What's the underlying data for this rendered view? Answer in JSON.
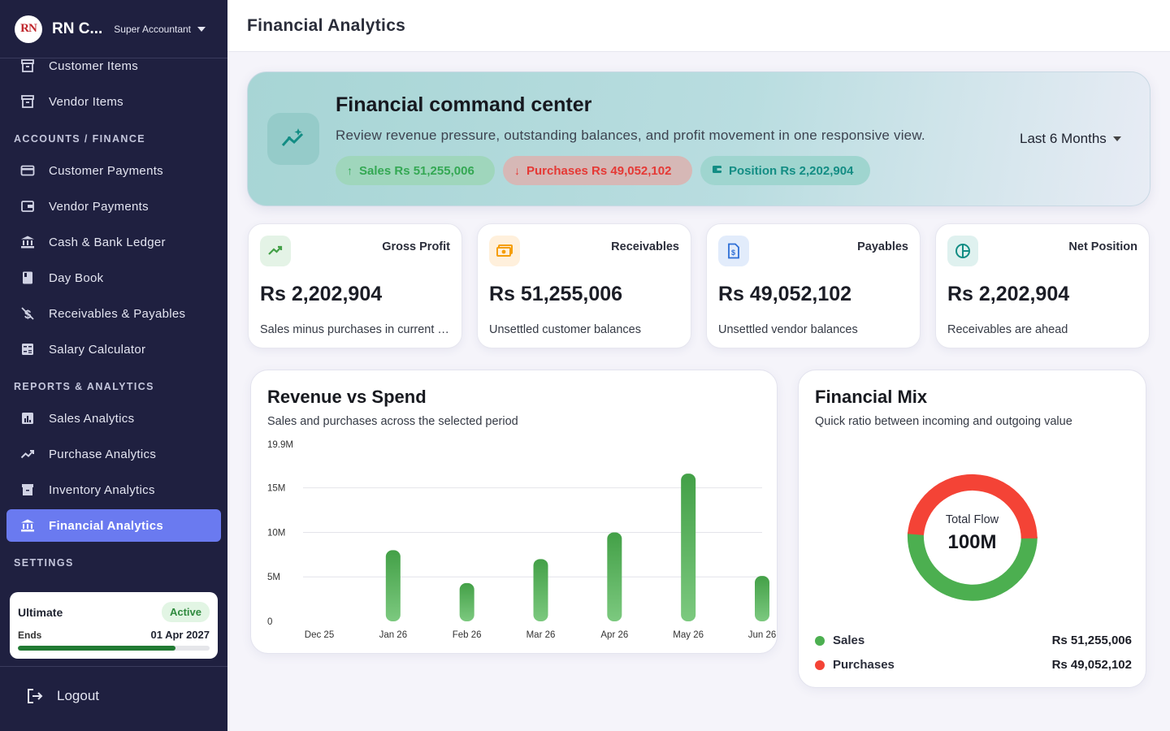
{
  "sidebar": {
    "brand": "RN C...",
    "role": "Super Accountant",
    "items_top": [
      {
        "label": "Customer Items",
        "icon": "archive-icon"
      },
      {
        "label": "Vendor Items",
        "icon": "archive-icon"
      }
    ],
    "sections": {
      "accounts": "ACCOUNTS / FINANCE",
      "reports": "REPORTS & ANALYTICS",
      "settings": "SETTINGS"
    },
    "accounts_items": [
      {
        "label": "Customer Payments"
      },
      {
        "label": "Vendor Payments"
      },
      {
        "label": "Cash & Bank Ledger"
      },
      {
        "label": "Day Book"
      },
      {
        "label": "Receivables & Payables"
      },
      {
        "label": "Salary Calculator"
      }
    ],
    "reports_items": [
      {
        "label": "Sales Analytics"
      },
      {
        "label": "Purchase Analytics"
      },
      {
        "label": "Inventory Analytics"
      },
      {
        "label": "Financial Analytics"
      }
    ],
    "plan": {
      "name": "Ultimate",
      "status": "Active",
      "ends_label": "Ends",
      "ends_date": "01 Apr 2027",
      "progress": 0.82
    },
    "logout": "Logout"
  },
  "header": {
    "title": "Financial Analytics"
  },
  "hero": {
    "title": "Financial command center",
    "subtitle": "Review revenue pressure, outstanding balances, and profit movement in one responsive view.",
    "chips": {
      "sales": "Sales Rs 51,255,006",
      "purchases": "Purchases Rs 49,052,102",
      "position": "Position Rs 2,202,904"
    },
    "period": "Last 6 Months"
  },
  "kpis": [
    {
      "label": "Gross Profit",
      "value": "Rs 2,202,904",
      "desc": "Sales minus purchases in current period"
    },
    {
      "label": "Receivables",
      "value": "Rs 51,255,006",
      "desc": "Unsettled customer balances"
    },
    {
      "label": "Payables",
      "value": "Rs 49,052,102",
      "desc": "Unsettled vendor balances"
    },
    {
      "label": "Net Position",
      "value": "Rs 2,202,904",
      "desc": "Receivables are ahead"
    }
  ],
  "colors": {
    "accent": "#6a7af0",
    "sidebar": "#1f2040",
    "sales": "#4caf50",
    "purchases": "#f44336",
    "position": "#138d84"
  },
  "revenue_chart": {
    "title": "Revenue vs Spend",
    "subtitle": "Sales and purchases across the selected period"
  },
  "mix_chart": {
    "title": "Financial Mix",
    "subtitle": "Quick ratio between incoming and outgoing value",
    "center_label": "Total Flow",
    "center_value": "100M",
    "legend": [
      {
        "name": "Sales",
        "value": "Rs 51,255,006"
      },
      {
        "name": "Purchases",
        "value": "Rs 49,052,102"
      }
    ]
  },
  "chart_data": [
    {
      "type": "bar",
      "title": "Revenue vs Spend",
      "categories": [
        "Dec 25",
        "Jan 26",
        "Feb 26",
        "Mar 26",
        "Apr 26",
        "May 26",
        "Jun 26"
      ],
      "values": [
        0,
        8.0,
        4.3,
        7.0,
        10.0,
        16.6,
        5.1
      ],
      "unit": "M",
      "yticks": [
        "0",
        "5M",
        "10M",
        "15M",
        "19.9M"
      ],
      "ylim": [
        0,
        19.9
      ],
      "grid": true
    },
    {
      "type": "pie",
      "title": "Financial Mix",
      "labels": [
        "Sales",
        "Purchases"
      ],
      "values": [
        51255006,
        49052102
      ]
    }
  ]
}
